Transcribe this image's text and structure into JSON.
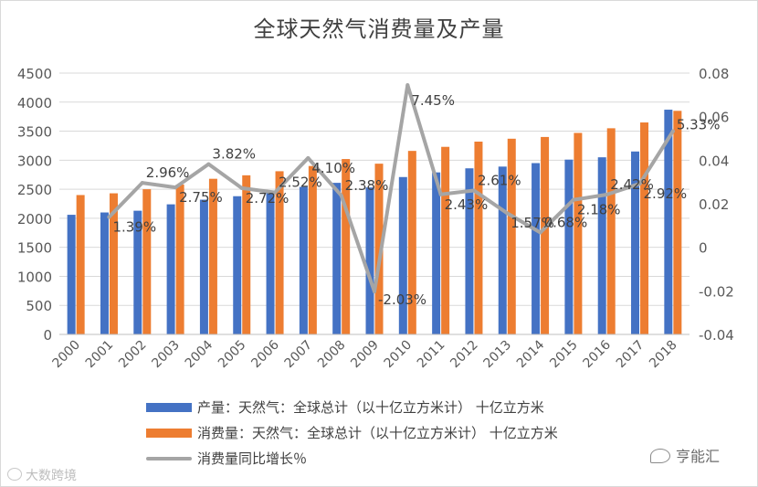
{
  "chart_data": {
    "type": "bar",
    "title": "全球天然气消费量及产量",
    "categories": [
      "2000",
      "2001",
      "2002",
      "2003",
      "2004",
      "2005",
      "2006",
      "2007",
      "2008",
      "2009",
      "2010",
      "2011",
      "2012",
      "2013",
      "2014",
      "2015",
      "2016",
      "2017",
      "2018"
    ],
    "series": [
      {
        "name": "产量：天然气：全球总计（以十亿立方米计） 十亿立方米",
        "type": "bar",
        "axis": "left",
        "color": "#4472c4",
        "values": [
          2060,
          2100,
          2130,
          2240,
          2320,
          2380,
          2450,
          2540,
          2610,
          2530,
          2710,
          2790,
          2860,
          2890,
          2950,
          3010,
          3050,
          3150,
          3870
        ]
      },
      {
        "name": "消费量：天然气：全球总计（以十亿立方米计） 十亿立方米",
        "type": "bar",
        "axis": "left",
        "color": "#ed7d31",
        "values": [
          2400,
          2430,
          2500,
          2580,
          2680,
          2740,
          2810,
          2900,
          3020,
          2940,
          3160,
          3230,
          3320,
          3370,
          3400,
          3470,
          3550,
          3650,
          3850
        ]
      },
      {
        "name": "消费量同比增长％",
        "type": "line",
        "axis": "right",
        "color": "#a5a5a5",
        "values": [
          null,
          0.0139,
          0.0296,
          0.0275,
          0.0382,
          0.0272,
          0.0252,
          0.041,
          0.0238,
          -0.0203,
          0.0745,
          0.0243,
          0.0261,
          0.0157,
          0.0068,
          0.0218,
          0.0242,
          0.0292,
          0.0533
        ],
        "labels": [
          "",
          "1.39%",
          "2.96%",
          "2.75%",
          "3.82%",
          "2.72%",
          "2.52%",
          "4.10%",
          "2.38%",
          "-2.03%",
          "7.45%",
          "2.43%",
          "2.61%",
          "1.57%",
          "0.68%",
          "2.18%",
          "2.42%",
          "2.92%",
          "5.33%"
        ]
      }
    ],
    "y_left": {
      "min": 0,
      "max": 4500,
      "step": 500,
      "ticks": [
        "0",
        "500",
        "1000",
        "1500",
        "2000",
        "2500",
        "3000",
        "3500",
        "4000",
        "4500"
      ]
    },
    "y_right": {
      "min": -0.04,
      "max": 0.08,
      "step": 0.02,
      "ticks": [
        "-0.04",
        "-0.02",
        "0",
        "0.02",
        "0.04",
        "0.06",
        "0.08"
      ]
    },
    "grid": true,
    "legend_position": "bottom"
  },
  "watermarks": {
    "left": "大数跨境",
    "right": "亨能汇"
  }
}
